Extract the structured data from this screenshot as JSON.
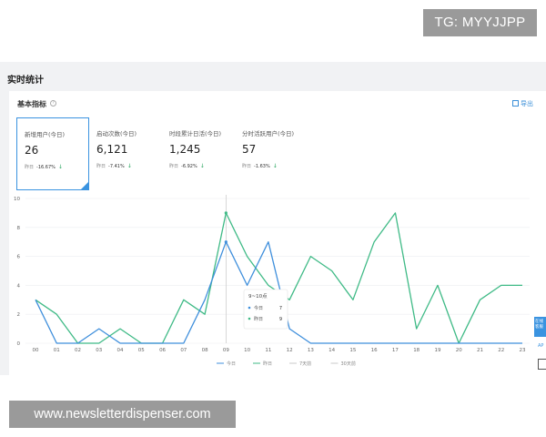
{
  "watermark_top": "TG: MYYJJPP",
  "watermark_bottom": "www.newsletterdispenser.com",
  "panel": {
    "title": "实时统计",
    "card_title": "基本指标",
    "help_icon": "question-circle-icon",
    "export_label": "导出",
    "export_icon": "export-icon"
  },
  "metrics": [
    {
      "label": "新增用户(今日)",
      "value": "26",
      "compare_label": "昨日",
      "compare_pct": "-16.67%",
      "trend": "↓",
      "active": true
    },
    {
      "label": "启动次数(今日)",
      "value": "6,121",
      "compare_label": "昨日",
      "compare_pct": "-7.41%",
      "trend": "↓",
      "active": false
    },
    {
      "label": "时段累计日活(今日)",
      "value": "1,245",
      "compare_label": "昨日",
      "compare_pct": "-6.92%",
      "trend": "↓",
      "active": false
    },
    {
      "label": "分时活跃用户(今日)",
      "value": "57",
      "compare_label": "昨日",
      "compare_pct": "-1.63%",
      "trend": "↓",
      "active": false
    }
  ],
  "side": {
    "tab_label": "在线客服",
    "ap_label": "AP"
  },
  "chart_data": {
    "type": "line",
    "x": [
      "00",
      "01",
      "02",
      "03",
      "04",
      "05",
      "06",
      "07",
      "08",
      "09",
      "10",
      "11",
      "12",
      "13",
      "14",
      "15",
      "16",
      "17",
      "18",
      "19",
      "20",
      "21",
      "22",
      "23"
    ],
    "y_ticks": [
      0,
      2,
      4,
      6,
      8,
      10
    ],
    "ylim": [
      0,
      10
    ],
    "grid": true,
    "legend_position": "bottom",
    "legend": [
      "今日",
      "昨日",
      "7天前",
      "30天前"
    ],
    "series": [
      {
        "name": "今日",
        "color": "#3f8fdc",
        "values": [
          3,
          0,
          0,
          1,
          0,
          0,
          0,
          0,
          3,
          7,
          4,
          7,
          1,
          0,
          0,
          0,
          0,
          0,
          0,
          0,
          0,
          0,
          0,
          0
        ]
      },
      {
        "name": "昨日",
        "color": "#3fba86",
        "values": [
          3,
          2,
          0,
          0,
          1,
          0,
          0,
          3,
          2,
          9,
          6,
          4,
          3,
          6,
          5,
          3,
          7,
          9,
          1,
          4,
          0,
          3,
          4,
          4
        ]
      }
    ],
    "tooltip": {
      "title": "9~10点",
      "rows": [
        {
          "name": "今日",
          "value": "7"
        },
        {
          "name": "昨日",
          "value": "9"
        }
      ]
    }
  }
}
